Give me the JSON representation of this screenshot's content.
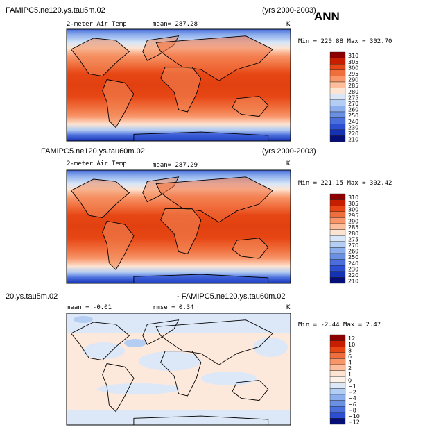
{
  "season": "ANN",
  "chart_data": [
    {
      "type": "heatmap",
      "title_left": "FAMIPC5.ne120.ys.tau5m.02",
      "title_right": "(yrs 2000-2003)",
      "variable": "2-meter Air Temp",
      "mean_label": "mean= 287.28",
      "units": "K",
      "minmax": "Min = 220.88 Max = 302.70",
      "min": 220.88,
      "max": 302.7,
      "mean": 287.28,
      "levels": [
        "310",
        "305",
        "300",
        "295",
        "290",
        "285",
        "280",
        "275",
        "270",
        "260",
        "250",
        "240",
        "230",
        "220",
        "210"
      ],
      "colors": [
        "#8c0000",
        "#c81e00",
        "#e64614",
        "#f06e3c",
        "#f8966a",
        "#fcbe9c",
        "#fde4d2",
        "#d8e6f8",
        "#b4cdf2",
        "#8caeec",
        "#6a90e4",
        "#4a6edc",
        "#2c4ed2",
        "#1632b4",
        "#060e78"
      ]
    },
    {
      "type": "heatmap",
      "title_left": "FAMIPC5.ne120.ys.tau60m.02",
      "title_right": "(yrs 2000-2003)",
      "variable": "2-meter Air Temp",
      "mean_label": "mean= 287.29",
      "units": "K",
      "minmax": "Min = 221.15 Max = 302.42",
      "min": 221.15,
      "max": 302.42,
      "mean": 287.29,
      "levels": [
        "310",
        "305",
        "300",
        "295",
        "290",
        "285",
        "280",
        "275",
        "270",
        "260",
        "250",
        "240",
        "230",
        "220",
        "210"
      ],
      "colors": [
        "#8c0000",
        "#c81e00",
        "#e64614",
        "#f06e3c",
        "#f8966a",
        "#fcbe9c",
        "#fde4d2",
        "#d8e6f8",
        "#b4cdf2",
        "#8caeec",
        "#6a90e4",
        "#4a6edc",
        "#2c4ed2",
        "#1632b4",
        "#060e78"
      ]
    },
    {
      "type": "heatmap",
      "title_left": "20.ys.tau5m.02",
      "title_right": "- FAMIPC5.ne120.ys.tau60m.02",
      "variable": "mean =   -0.01",
      "mean_label": "rmse =   0.34",
      "units": "K",
      "minmax": "Min =  -2.44 Max =   2.47",
      "min": -2.44,
      "max": 2.47,
      "mean": -0.01,
      "rmse": 0.34,
      "levels": [
        "12",
        "10",
        "8",
        "6",
        "4",
        "2",
        "1",
        "0",
        "−1",
        "−2",
        "−4",
        "−6",
        "−8",
        "−10",
        "−12"
      ],
      "colors": [
        "#8c0000",
        "#c81e00",
        "#e64614",
        "#f06e3c",
        "#f8966a",
        "#fcbe9c",
        "#fde4d2",
        "#fdf0e6",
        "#dce8f8",
        "#b4cdf2",
        "#8caeec",
        "#6a90e4",
        "#4a6edc",
        "#2c4ed2",
        "#060e78"
      ]
    }
  ]
}
